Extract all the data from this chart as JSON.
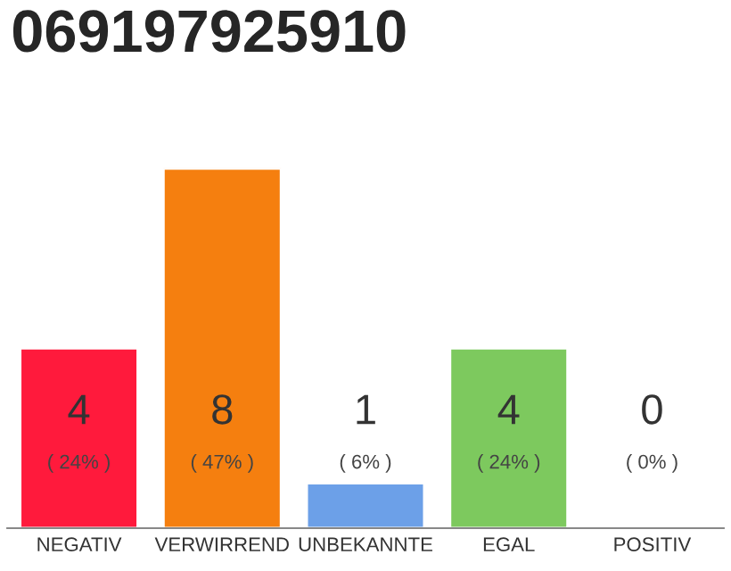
{
  "chart_data": {
    "type": "bar",
    "title": "069197925910",
    "categories": [
      "NEGATIV",
      "VERWIRREND",
      "UNBEKANNTE",
      "EGAL",
      "POSITIV"
    ],
    "values": [
      4,
      8,
      1,
      4,
      0
    ],
    "colors": [
      "#ff1a3c",
      "#f57f0f",
      "#6ca0e8",
      "#7dc95e",
      null
    ],
    "value_labels": [
      "4\n( 24% )",
      "8\n( 47% )",
      "1\n( 6% )",
      "4\n( 24% )",
      "0\n( 0% )"
    ],
    "tick_labels": "x",
    "grid": false,
    "legend": false
  }
}
